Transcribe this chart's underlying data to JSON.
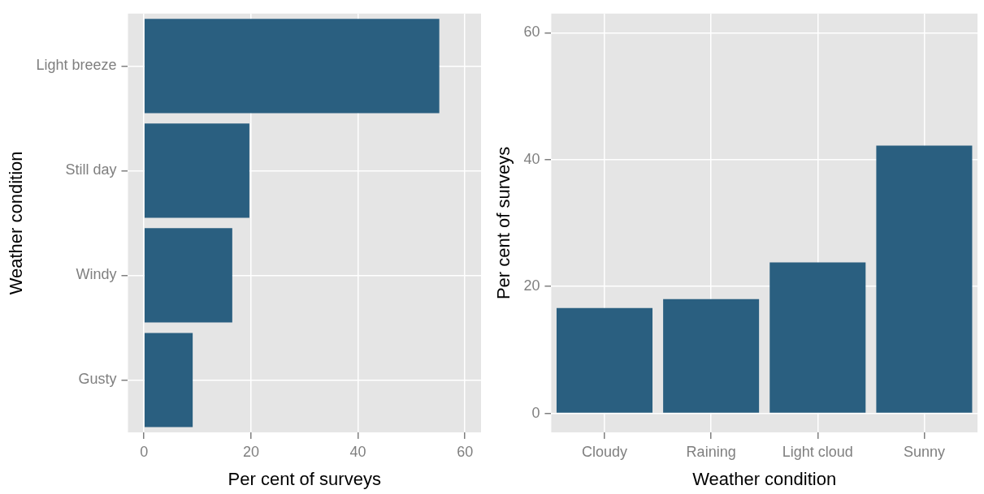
{
  "chart_data": [
    {
      "type": "bar",
      "orientation": "horizontal",
      "categories": [
        "Light breeze",
        "Still day",
        "Windy",
        "Gusty"
      ],
      "values": [
        55.2,
        19.7,
        16.5,
        9.1
      ],
      "color": "#2a5f80",
      "xlabel": "Per cent of surveys",
      "ylabel": "Weather condition",
      "xlim": [
        -3,
        63
      ],
      "xticks": [
        0,
        20,
        40,
        60
      ],
      "grid": true
    },
    {
      "type": "bar",
      "categories": [
        "Cloudy",
        "Raining",
        "Light cloud",
        "Sunny"
      ],
      "values": [
        16.6,
        18.0,
        23.8,
        42.2
      ],
      "color": "#2a5f80",
      "xlabel": "Weather condition",
      "ylabel": "Per cent of surveys",
      "ylim": [
        -3,
        63
      ],
      "yticks": [
        0,
        20,
        40,
        60
      ],
      "grid": true
    }
  ]
}
